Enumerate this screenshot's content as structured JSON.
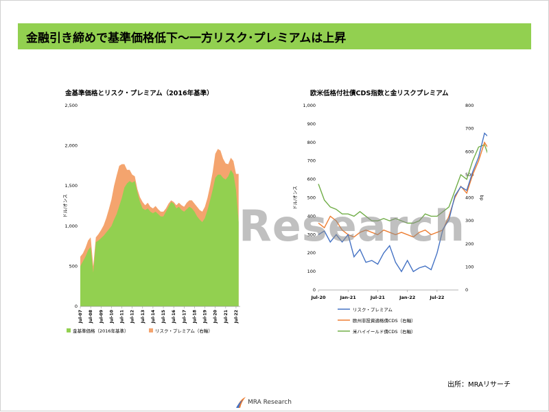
{
  "header": {
    "title": "金融引き締めで基準価格低下～一方リスク･プレミアムは上昇"
  },
  "footer": {
    "source": "出所：MRAリサーチ",
    "logo_text": "MRA Research",
    "watermark": "Research"
  },
  "chart_data": [
    {
      "type": "area",
      "title": "金基準価格とリスク・プレミアム（2016年基準）",
      "ylabel": "ドル/オンス",
      "ylim": [
        0,
        2500
      ],
      "yticks": [
        "0",
        "500",
        "1,000",
        "1,500",
        "2,000",
        "2,500"
      ],
      "x_tick_labels": [
        "Jul-07",
        "Jul-08",
        "Jul-09",
        "Jul-10",
        "Jul-11",
        "Jul-12",
        "Jul-13",
        "Jul-14",
        "Jul-15",
        "Jul-16",
        "Jul-17",
        "Jul-18",
        "Jul-19",
        "Jul-20",
        "Jul-21",
        "Jul-22"
      ],
      "x_start": 2007.5,
      "x_end": 2022.9,
      "x_step": 0.25,
      "stacked": true,
      "legend_position": "bottom",
      "series": [
        {
          "name": "金基準価格（2016年基準）",
          "color": "#92d050",
          "values": [
            500,
            560,
            620,
            700,
            740,
            420,
            800,
            820,
            850,
            880,
            920,
            960,
            1000,
            1080,
            1150,
            1250,
            1350,
            1480,
            1530,
            1560,
            1540,
            1560,
            1420,
            1300,
            1220,
            1200,
            1220,
            1180,
            1160,
            1180,
            1150,
            1120,
            1120,
            1180,
            1240,
            1300,
            1280,
            1220,
            1240,
            1200,
            1180,
            1210,
            1240,
            1220,
            1180,
            1120,
            1080,
            1050,
            1100,
            1200,
            1320,
            1450,
            1600,
            1640,
            1640,
            1600,
            1580,
            1620,
            1700,
            1650,
            1450,
            1050
          ]
        },
        {
          "name": "リスク・プレミアム（右軸）",
          "color": "#f4a46e",
          "values": [
            120,
            100,
            110,
            120,
            120,
            80,
            60,
            80,
            100,
            130,
            180,
            250,
            330,
            420,
            480,
            500,
            420,
            290,
            170,
            140,
            100,
            60,
            40,
            60,
            80,
            60,
            70,
            60,
            60,
            70,
            60,
            60,
            60,
            40,
            40,
            20,
            20,
            40,
            50,
            60,
            60,
            80,
            80,
            100,
            100,
            120,
            120,
            130,
            140,
            150,
            180,
            220,
            300,
            320,
            300,
            240,
            200,
            150,
            150,
            160,
            200,
            600
          ]
        }
      ]
    },
    {
      "type": "line",
      "title": "欧米低格付社債CDS指数と金リスクプレミアム",
      "ylabel_left": "ドル/オンス",
      "ylabel_right": "bp",
      "ylim_left": [
        0,
        1000
      ],
      "ylim_right": [
        0,
        800
      ],
      "yticks_left": [
        "0",
        "100",
        "200",
        "300",
        "400",
        "500",
        "600",
        "700",
        "800",
        "900",
        "1,000"
      ],
      "yticks_right": [
        "0",
        "100",
        "200",
        "300",
        "400",
        "500",
        "600",
        "700",
        "800"
      ],
      "x_tick_labels": [
        "Jul-20",
        "Jan-21",
        "Jul-21",
        "Jan-22",
        "Jul-22"
      ],
      "x_start": 2020.5,
      "x_end": 2022.86,
      "x_step": 0.1,
      "legend_position": "bottom",
      "series": [
        {
          "name": "リスク・プレミアム",
          "axis": "left",
          "color": "#4472c4",
          "values": [
            300,
            320,
            260,
            300,
            260,
            300,
            180,
            220,
            150,
            160,
            140,
            200,
            240,
            150,
            100,
            160,
            100,
            120,
            130,
            110,
            200,
            330,
            380,
            510,
            560,
            540,
            640,
            720,
            850,
            820
          ]
        },
        {
          "name": "欧州非投資適格債CDS（右軸）",
          "axis": "right",
          "color": "#ed7d31",
          "values": [
            290,
            270,
            320,
            300,
            260,
            240,
            230,
            250,
            260,
            250,
            240,
            260,
            250,
            240,
            250,
            240,
            230,
            250,
            260,
            240,
            250,
            260,
            320,
            400,
            450,
            420,
            500,
            560,
            640,
            600
          ]
        },
        {
          "name": "米ハイイールド債CDS（右軸）",
          "axis": "right",
          "color": "#70ad47",
          "values": [
            460,
            390,
            360,
            350,
            330,
            330,
            320,
            340,
            320,
            300,
            300,
            310,
            300,
            310,
            300,
            290,
            290,
            300,
            330,
            320,
            320,
            340,
            360,
            430,
            500,
            480,
            560,
            620,
            630,
            560
          ]
        }
      ]
    }
  ]
}
